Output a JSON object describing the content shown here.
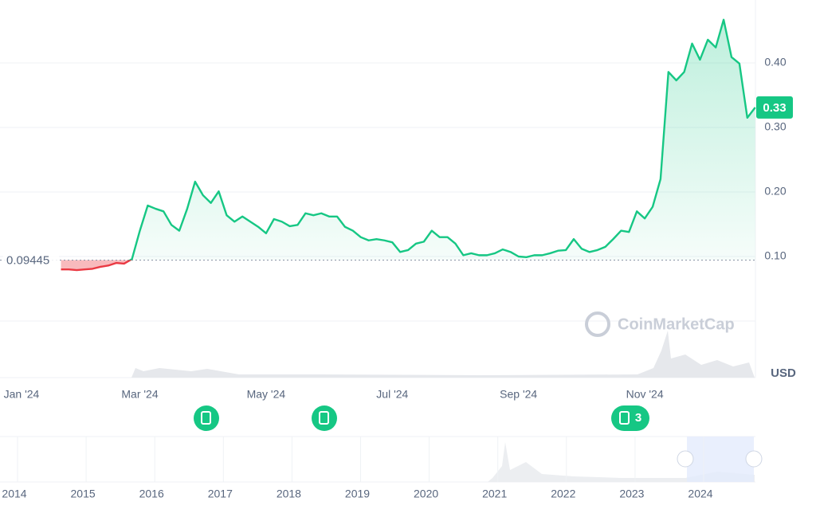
{
  "chart_data": {
    "type": "line",
    "categories": [
      "Jan '24",
      null,
      null,
      null,
      null,
      null,
      null,
      null,
      null,
      null,
      null,
      null,
      null,
      null,
      null,
      "Mar '24",
      null,
      null,
      null,
      null,
      null,
      null,
      null,
      null,
      null,
      null,
      null,
      null,
      null,
      null,
      null,
      "May '24",
      null,
      null,
      null,
      null,
      null,
      null,
      null,
      null,
      null,
      null,
      null,
      null,
      null,
      null,
      null,
      "Jul '24",
      null,
      null,
      null,
      null,
      null,
      null,
      null,
      null,
      null,
      null,
      null,
      null,
      null,
      null,
      null,
      "Sep '24",
      null,
      null,
      null,
      null,
      null,
      null,
      null,
      null,
      null,
      null,
      null,
      null,
      null,
      null,
      null,
      "Nov '24",
      null,
      null,
      null,
      null,
      null,
      null,
      null,
      null,
      null,
      null,
      null,
      null,
      null,
      null
    ],
    "series": [
      {
        "name": null,
        "color": "#16c784",
        "below_color": "#ea3943",
        "values": [
          null,
          null,
          null,
          null,
          null,
          0.08,
          0.08,
          0.079,
          0.08,
          0.081,
          0.084,
          0.086,
          0.09,
          0.089,
          0.096,
          0.14,
          0.179,
          0.174,
          0.17,
          0.149,
          0.14,
          0.174,
          0.216,
          0.195,
          0.183,
          0.201,
          0.164,
          0.154,
          0.162,
          0.154,
          0.146,
          0.136,
          0.158,
          0.154,
          0.147,
          0.149,
          0.167,
          0.164,
          0.167,
          0.162,
          0.162,
          0.146,
          0.14,
          0.13,
          0.125,
          0.127,
          0.125,
          0.122,
          0.107,
          0.11,
          0.12,
          0.123,
          0.14,
          0.13,
          0.13,
          0.12,
          0.102,
          0.105,
          0.102,
          0.102,
          0.105,
          0.111,
          0.107,
          0.1,
          0.099,
          0.102,
          0.102,
          0.105,
          0.109,
          0.11,
          0.127,
          0.112,
          0.107,
          0.11,
          0.115,
          0.127,
          0.14,
          0.138,
          0.17,
          0.159,
          0.177,
          0.22,
          0.386,
          0.373,
          0.386,
          0.43,
          0.405,
          0.436,
          0.424,
          0.467,
          0.409,
          0.399,
          0.315,
          0.331
        ],
        "value_labels": [
          null,
          null,
          null,
          null,
          null,
          null,
          null,
          null,
          null,
          null,
          null,
          null,
          null,
          null,
          null,
          null,
          null,
          null,
          null,
          null,
          null,
          null,
          null,
          null,
          null,
          null,
          null,
          null,
          null,
          null,
          null,
          null,
          null,
          null,
          null,
          null,
          null,
          null,
          null,
          null,
          null,
          null,
          null,
          null,
          null,
          null,
          null,
          null,
          null,
          null,
          null,
          null,
          null,
          null,
          null,
          null,
          null,
          null,
          null,
          null,
          null,
          null,
          null,
          null,
          null,
          null,
          null,
          null,
          null,
          null,
          null,
          null,
          null,
          null,
          null,
          null,
          null,
          null,
          null,
          null,
          null,
          null,
          null,
          null,
          null,
          null,
          null,
          null,
          null,
          null,
          null,
          null,
          null,
          "0.33"
        ]
      }
    ],
    "baseline": 0.09445,
    "ylim": [
      0,
      0.5
    ],
    "yticks": [
      {
        "value": 0.1,
        "label": "0.10"
      },
      {
        "value": 0.2,
        "label": "0.20"
      },
      {
        "value": 0.3,
        "label": "0.30"
      },
      {
        "value": 0.4,
        "label": "0.40"
      }
    ],
    "grid": true,
    "currency": "USD",
    "watermark": "CoinMarketCap",
    "event_count": 3,
    "navigator_years": [
      "2014",
      "2015",
      "2016",
      "2017",
      "2018",
      "2019",
      "2020",
      "2021",
      "2022",
      "2023",
      "2024"
    ]
  }
}
